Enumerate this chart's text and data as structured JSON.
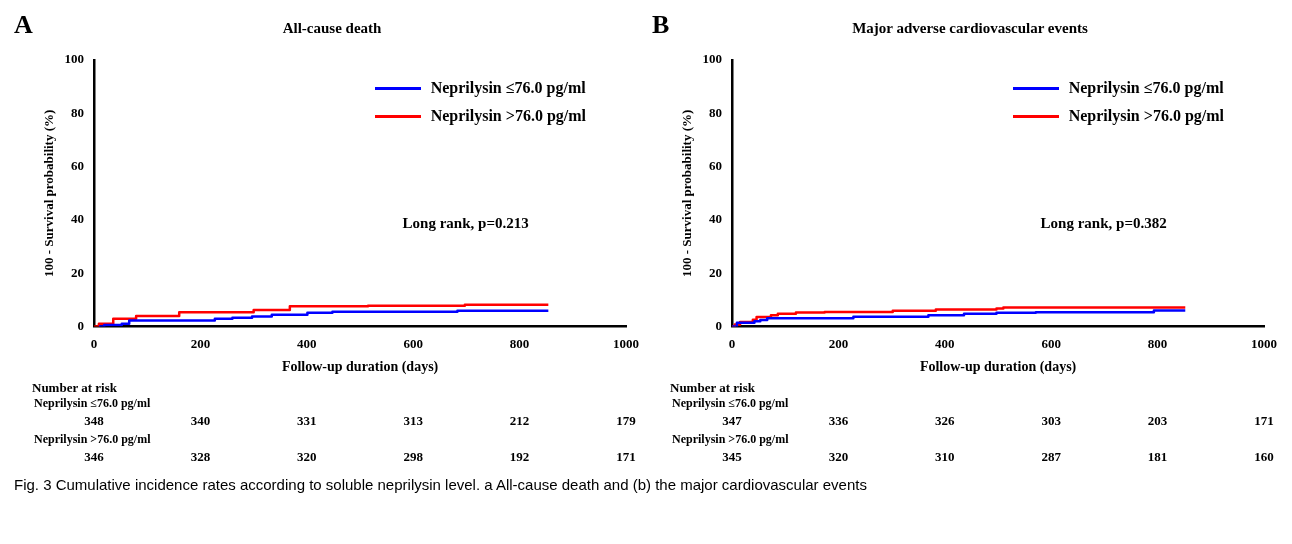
{
  "chart_data": [
    {
      "type": "step",
      "title": "All-cause death",
      "xlabel": "Follow-up duration (days)",
      "ylabel": "100 - Survival probability (%)",
      "xlim": [
        0,
        1000
      ],
      "xticks": [
        0,
        200,
        400,
        600,
        800,
        1000
      ],
      "ylim": [
        0,
        100
      ],
      "yticks": [
        0,
        20,
        40,
        60,
        80,
        100
      ],
      "grid": false,
      "legend": "top right",
      "marker": "none",
      "line_style": "solid",
      "series": [
        {
          "name": "Neprilysin ≤76.0 pg/ml",
          "color": "#0000ff",
          "x": [
            9,
            19,
            52,
            66,
            227,
            260,
            297,
            334,
            401,
            448,
            683,
            854
          ],
          "values": [
            0,
            0.6,
            1.1,
            2.3,
            2.9,
            3.3,
            3.8,
            4.4,
            5.2,
            5.6,
            5.9,
            5.9
          ]
        },
        {
          "name": "Neprilysin >76.0 pg/ml",
          "color": "#ff0000",
          "x": [
            0,
            9,
            36,
            79,
            160,
            300,
            368,
            515,
            697,
            854
          ],
          "values": [
            0,
            1.1,
            2.9,
            4,
            5.4,
            6.2,
            7.6,
            7.8,
            8.2,
            8.2
          ]
        }
      ],
      "annotations": [
        "A",
        "Long rank, p=0.213",
        "Number at risk",
        "Neprilysin ≤76.0 pg/ml",
        "348",
        "340",
        "331",
        "313",
        "212",
        "179",
        "Neprilysin >76.0 pg/ml",
        "346",
        "328",
        "320",
        "298",
        "192",
        "171"
      ]
    },
    {
      "type": "step",
      "title": "Major adverse cardiovascular events",
      "xlabel": "Follow-up duration (days)",
      "ylabel": "100 - Survival probability (%)",
      "xlim": [
        0,
        1000
      ],
      "xticks": [
        0,
        200,
        400,
        600,
        800,
        1000
      ],
      "ylim": [
        0,
        100
      ],
      "yticks": [
        0,
        20,
        40,
        60,
        80,
        100
      ],
      "grid": false,
      "legend": "top right",
      "marker": "none",
      "line_style": "solid",
      "series": [
        {
          "name": "Neprilysin ≤76.0 pg/ml",
          "color": "#0000ff",
          "x": [
            0,
            9,
            42,
            53,
            66,
            228,
            369,
            436,
            497,
            571,
            793,
            852
          ],
          "values": [
            0,
            1.4,
            2,
            2.5,
            3.1,
            3.7,
            4.3,
            4.8,
            5.2,
            5.4,
            6,
            6
          ]
        },
        {
          "name": "Neprilysin >76.0 pg/ml",
          "color": "#ff0000",
          "x": [
            0,
            5,
            15,
            39,
            46,
            73,
            86,
            120,
            174,
            302,
            383,
            497,
            510,
            852
          ],
          "values": [
            0,
            0.8,
            1.7,
            2.6,
            3.6,
            4.3,
            4.8,
            5.3,
            5.5,
            5.9,
            6.4,
            6.8,
            7.2,
            7.2
          ]
        }
      ],
      "annotations": [
        "B",
        "Long rank, p=0.382",
        "Number at risk",
        "Neprilysin ≤76.0 pg/ml",
        "347",
        "336",
        "326",
        "303",
        "203",
        "171",
        "Neprilysin >76.0 pg/ml",
        "345",
        "320",
        "310",
        "287",
        "181",
        "160",
        "Fig. 3 Cumulative incidence rates according to soluble neprilysin level. a All-cause death and (b) the major cardiovascular events"
      ]
    }
  ]
}
